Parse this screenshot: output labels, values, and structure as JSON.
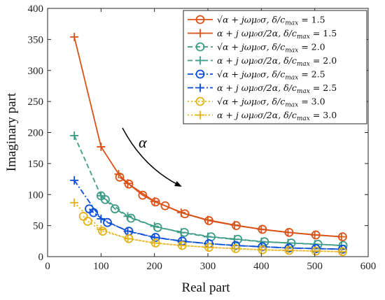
{
  "chart_data": {
    "type": "line",
    "title": "",
    "xlabel": "Real part",
    "ylabel": "Imaginary part",
    "xlim": [
      0,
      600
    ],
    "ylim": [
      0,
      400
    ],
    "xticks": [
      "0",
      "100",
      "200",
      "300",
      "400",
      "500",
      "600"
    ],
    "yticks": [
      "0",
      "50",
      "100",
      "150",
      "200",
      "250",
      "300",
      "350",
      "400"
    ],
    "grid": false,
    "legend_position": "top-right",
    "annotation": "α",
    "series": [
      {
        "name": "√(α + jωμ₀σ), δ/c_max = 1.5",
        "color": "#d95319",
        "dash": "solid",
        "marker": "circle",
        "x": [
          135,
          152,
          178,
          202,
          220,
          257,
          302,
          353,
          402,
          452,
          502,
          552
        ],
        "y": [
          128,
          117,
          99,
          88,
          82,
          69,
          58,
          50,
          44,
          39,
          35,
          32
        ]
      },
      {
        "name": "α + j(ωμ₀σ/2α), δ/c_max = 1.5",
        "color": "#d95319",
        "dash": "solid",
        "marker": "plus",
        "x": [
          50,
          100,
          133,
          150,
          200,
          250,
          300,
          350,
          400,
          450,
          500,
          550
        ],
        "y": [
          354,
          177,
          133,
          118,
          89,
          71,
          59,
          51,
          44,
          39,
          35,
          32
        ]
      },
      {
        "name": "√(α + jωμ₀σ), δ/c_max = 2.0",
        "color": "#3e9c86",
        "dash": "dashed",
        "marker": "circle",
        "x": [
          100,
          108,
          126,
          156,
          206,
          256,
          306,
          356,
          406,
          456,
          506,
          553
        ],
        "y": [
          98,
          92,
          77,
          62,
          47,
          39,
          32,
          28,
          24,
          22,
          20,
          18
        ]
      },
      {
        "name": "α + j(ωμ₀σ/2α), δ/c_max = 2.0",
        "color": "#3e9c86",
        "dash": "dashed",
        "marker": "plus",
        "x": [
          50,
          100,
          150,
          200,
          250,
          300,
          350,
          400,
          450,
          500,
          550
        ],
        "y": [
          195,
          98,
          65,
          49,
          39,
          32,
          28,
          24,
          22,
          20,
          18
        ]
      },
      {
        "name": "√(α + jωμ₀σ), δ/c_max = 2.5",
        "color": "#0b4fd6",
        "dash": "dashdot",
        "marker": "circle",
        "x": [
          78,
          86,
          112,
          152,
          202,
          252,
          302,
          352,
          402,
          452,
          502,
          552
        ],
        "y": [
          77,
          71,
          55,
          41,
          31,
          25,
          21,
          18,
          16,
          14,
          13,
          12
        ]
      },
      {
        "name": "α + j(ωμ₀σ/2α), δ/c_max = 2.5",
        "color": "#0b4fd6",
        "dash": "dashdot",
        "marker": "plus",
        "x": [
          50,
          100,
          150,
          200,
          250,
          300,
          350,
          400,
          450,
          500,
          550
        ],
        "y": [
          123,
          61,
          41,
          31,
          25,
          21,
          18,
          16,
          14,
          13,
          12
        ]
      },
      {
        "name": "√(α + jωμ₀σ), δ/c_max = 3.0",
        "color": "#e3b21b",
        "dash": "dotted",
        "marker": "circle",
        "x": [
          67,
          75,
          103,
          152,
          202,
          252,
          302,
          352,
          402,
          452,
          502,
          552
        ],
        "y": [
          65,
          57,
          41,
          29,
          22,
          18,
          15,
          13,
          11,
          10,
          9,
          8
        ]
      },
      {
        "name": "α + j(ωμ₀σ/2α), δ/c_max = 3.0",
        "color": "#e3b21b",
        "dash": "dotted",
        "marker": "plus",
        "x": [
          50,
          100,
          150,
          200,
          250,
          300,
          350,
          400,
          450,
          500,
          550
        ],
        "y": [
          87,
          44,
          29,
          22,
          18,
          15,
          13,
          11,
          10,
          9,
          8
        ]
      }
    ]
  },
  "legend": {
    "items": [
      {
        "lhs": "√α + jωμ₀σ",
        "rhs": ", δ/c",
        "sub": "max",
        "val": " = 1.5"
      },
      {
        "lhs": "α + j ωμ₀σ/2α",
        "rhs": ", δ/c",
        "sub": "max",
        "val": " = 1.5"
      },
      {
        "lhs": "√α + jωμ₀σ",
        "rhs": ", δ/c",
        "sub": "max",
        "val": " = 2.0"
      },
      {
        "lhs": "α + j ωμ₀σ/2α",
        "rhs": ", δ/c",
        "sub": "max",
        "val": " = 2.0"
      },
      {
        "lhs": "√α + jωμ₀σ",
        "rhs": ", δ/c",
        "sub": "max",
        "val": " = 2.5"
      },
      {
        "lhs": "α + j ωμ₀σ/2α",
        "rhs": ", δ/c",
        "sub": "max",
        "val": " = 2.5"
      },
      {
        "lhs": "√α + jωμ₀σ",
        "rhs": ", δ/c",
        "sub": "max",
        "val": " = 3.0"
      },
      {
        "lhs": "α + j ωμ₀σ/2α",
        "rhs": ", δ/c",
        "sub": "max",
        "val": " = 3.0"
      }
    ]
  }
}
